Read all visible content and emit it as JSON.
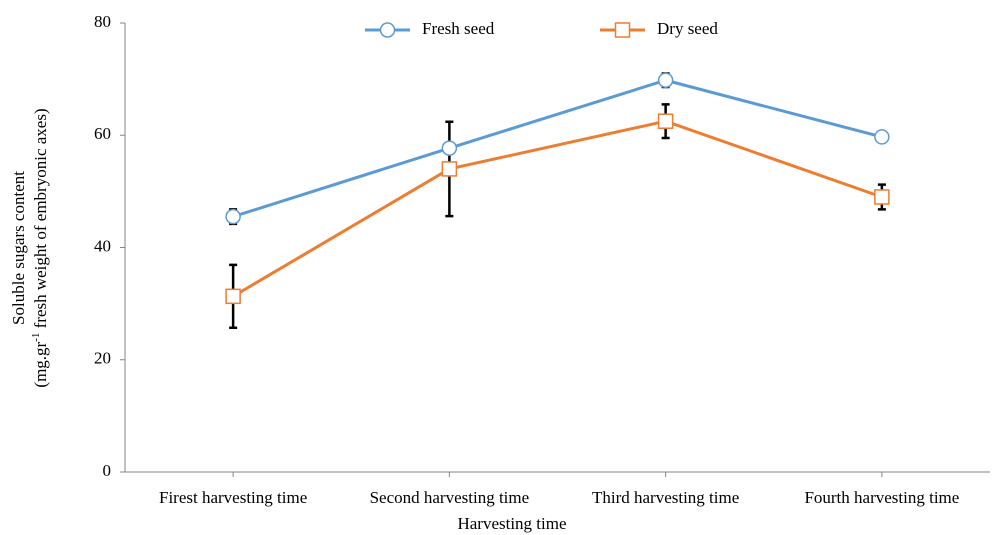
{
  "chart_data": {
    "type": "line",
    "x_label": "Harvesting time",
    "y_label": [
      "Soluble sugars content",
      [
        "(mg.gr",
        "-1",
        " fresh weight of embryonic axes)"
      ]
    ],
    "categories": [
      "Firest harvesting time",
      "Second harvesting time",
      "Third harvesting time",
      "Fourth harvesting time"
    ],
    "series": [
      {
        "name": "Fresh seed",
        "color": "#5b9bd5",
        "marker": "circle",
        "values": [
          45.5,
          57.7,
          69.8,
          59.7
        ],
        "errors": [
          1.3,
          0.8,
          1.2,
          0.5
        ]
      },
      {
        "name": "Dry seed",
        "color": "#ed7d31",
        "marker": "square",
        "values": [
          31.3,
          54,
          62.5,
          49
        ],
        "errors": [
          5.6,
          8.4,
          3,
          2.2
        ]
      }
    ],
    "ylim": [
      0,
      80
    ],
    "yticks": [
      0,
      20,
      40,
      60,
      80
    ],
    "legend": "top"
  }
}
